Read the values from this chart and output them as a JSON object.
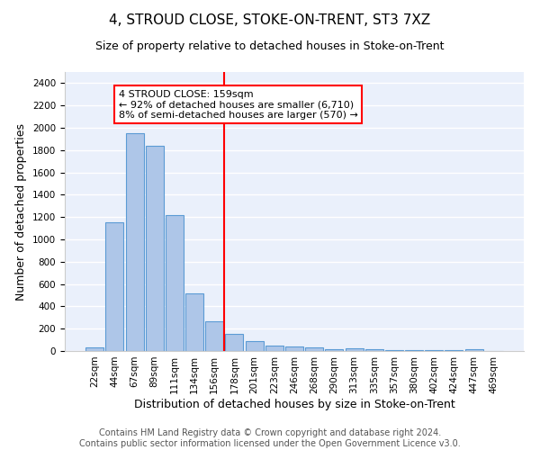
{
  "title": "4, STROUD CLOSE, STOKE-ON-TRENT, ST3 7XZ",
  "subtitle": "Size of property relative to detached houses in Stoke-on-Trent",
  "xlabel": "Distribution of detached houses by size in Stoke-on-Trent",
  "ylabel": "Number of detached properties",
  "categories": [
    "22sqm",
    "44sqm",
    "67sqm",
    "89sqm",
    "111sqm",
    "134sqm",
    "156sqm",
    "178sqm",
    "201sqm",
    "223sqm",
    "246sqm",
    "268sqm",
    "290sqm",
    "313sqm",
    "335sqm",
    "357sqm",
    "380sqm",
    "402sqm",
    "424sqm",
    "447sqm",
    "469sqm"
  ],
  "values": [
    30,
    1150,
    1950,
    1840,
    1220,
    520,
    265,
    155,
    85,
    48,
    38,
    35,
    20,
    25,
    20,
    10,
    10,
    5,
    5,
    20,
    0
  ],
  "bar_color": "#aec6e8",
  "bar_edge_color": "#5b9bd5",
  "property_line_x": 6.5,
  "property_line_color": "red",
  "annotation_text": "4 STROUD CLOSE: 159sqm\n← 92% of detached houses are smaller (6,710)\n8% of semi-detached houses are larger (570) →",
  "annotation_box_color": "white",
  "annotation_box_edge_color": "red",
  "ylim": [
    0,
    2500
  ],
  "yticks": [
    0,
    200,
    400,
    600,
    800,
    1000,
    1200,
    1400,
    1600,
    1800,
    2000,
    2200,
    2400
  ],
  "footer_text": "Contains HM Land Registry data © Crown copyright and database right 2024.\nContains public sector information licensed under the Open Government Licence v3.0.",
  "bg_color": "#eaf0fb",
  "grid_color": "white",
  "title_fontsize": 11,
  "subtitle_fontsize": 9,
  "xlabel_fontsize": 9,
  "ylabel_fontsize": 9,
  "tick_fontsize": 7.5,
  "footer_fontsize": 7,
  "annotation_fontsize": 8
}
